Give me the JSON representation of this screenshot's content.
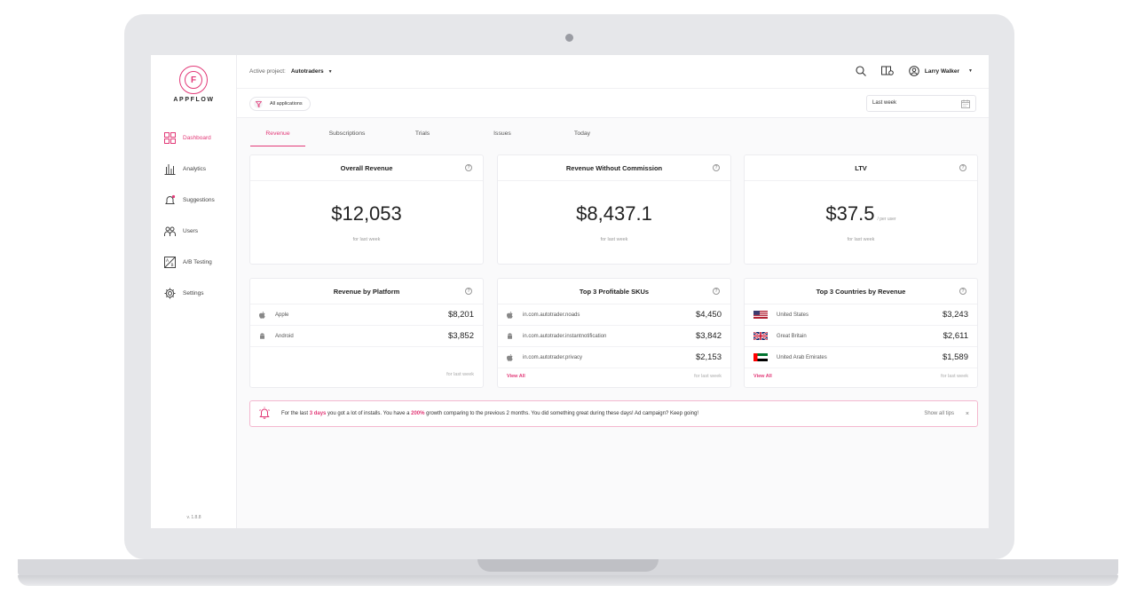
{
  "sidebar": {
    "brand": "APPFLOW",
    "items": [
      {
        "label": "Dashboard",
        "icon": "dashboard-icon"
      },
      {
        "label": "Analytics",
        "icon": "bar-chart-icon"
      },
      {
        "label": "Suggestions",
        "icon": "bell-icon"
      },
      {
        "label": "Users",
        "icon": "users-icon"
      },
      {
        "label": "A/B Testing",
        "icon": "ab-testing-icon"
      },
      {
        "label": "Settings",
        "icon": "gear-icon"
      }
    ],
    "version": "v. 1.8.8"
  },
  "topbar": {
    "project_label": "Active project:",
    "project_value": "Autotraders",
    "user_name": "Larry Walker"
  },
  "filterbar": {
    "filter_label": "All applications",
    "period": "Last week"
  },
  "tabs": [
    "Revenue",
    "Subscriptions",
    "Trials",
    "Issues",
    "Today"
  ],
  "kpis": {
    "overall": {
      "title": "Overall Revenue",
      "value": "$12,053",
      "sub": "for last week"
    },
    "without_commission": {
      "title": "Revenue Without Commission",
      "value": "$8,437.1",
      "sub": "for last week"
    },
    "ltv": {
      "title": "LTV",
      "value": "$37.5",
      "unit": "/ per user",
      "sub": "for last week"
    }
  },
  "platform": {
    "title": "Revenue by Platform",
    "rows": [
      {
        "label": "Apple",
        "value": "$8,201"
      },
      {
        "label": "Android",
        "value": "$3,852"
      }
    ],
    "foot": "for last week"
  },
  "skus": {
    "title": "Top 3 Profitable SKUs",
    "rows": [
      {
        "label": "in.com.autotrader.noads",
        "value": "$4,450"
      },
      {
        "label": "in.com.autotrader.instantnotification",
        "value": "$3,842"
      },
      {
        "label": "in.com.autotrader.privacy",
        "value": "$2,153"
      }
    ],
    "view_all": "View All",
    "foot": "for last week"
  },
  "countries": {
    "title": "Top 3 Countries by Revenue",
    "rows": [
      {
        "label": "United States",
        "value": "$3,243"
      },
      {
        "label": "Great Britain",
        "value": "$2,611"
      },
      {
        "label": "United Arab Emirates",
        "value": "$1,589"
      }
    ],
    "view_all": "View All",
    "foot": "for last week"
  },
  "tip": {
    "t1": "For the last ",
    "h1": "3 days",
    "t2": " you got a lot of installs. You have a ",
    "h2": "200%",
    "t3": " growth comparing to the previous 2 months. You did something great during these days! Ad campaign? Keep going!",
    "show_all": "Show all tips",
    "close": "×"
  },
  "colors": {
    "accent": "#e23a78"
  }
}
